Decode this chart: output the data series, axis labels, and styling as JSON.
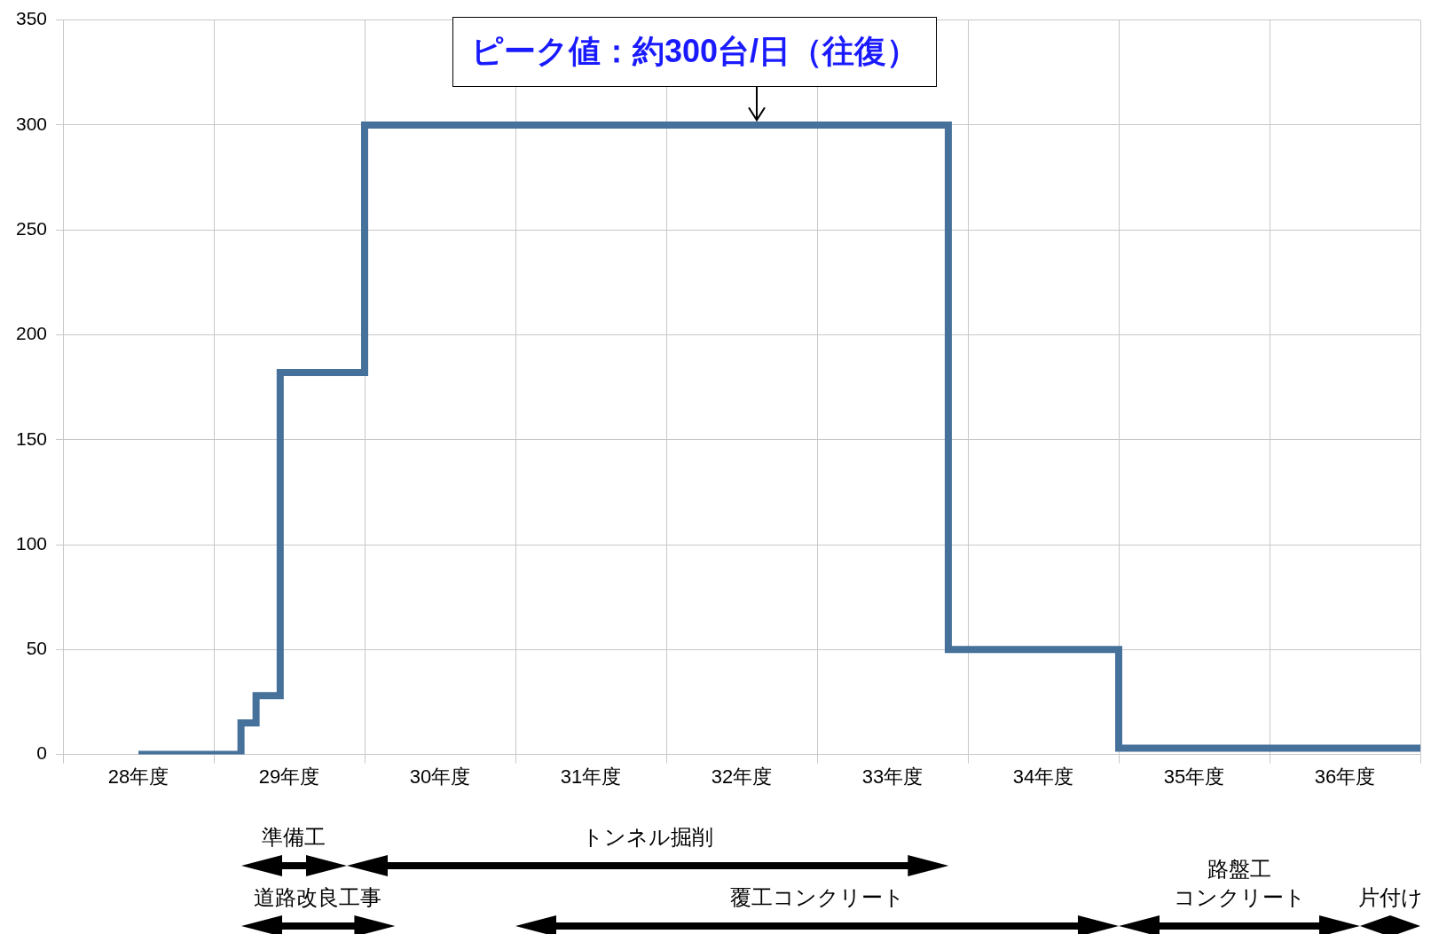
{
  "chart_data": {
    "type": "step",
    "x": [
      28.5,
      29.18,
      29.28,
      29.44,
      30,
      33.87,
      35,
      37
    ],
    "values": [
      0,
      15,
      28,
      182,
      300,
      50,
      3,
      3
    ],
    "color": "#46719b",
    "xlim": [
      28,
      37
    ],
    "xticks": [
      {
        "value": 28,
        "label": null
      },
      {
        "value": 28.5,
        "label": "28年度"
      },
      {
        "value": 29,
        "label": null
      },
      {
        "value": 29.5,
        "label": "29年度"
      },
      {
        "value": 30,
        "label": null
      },
      {
        "value": 30.5,
        "label": "30年度"
      },
      {
        "value": 31,
        "label": null
      },
      {
        "value": 31.5,
        "label": "31年度"
      },
      {
        "value": 32,
        "label": null
      },
      {
        "value": 32.5,
        "label": "32年度"
      },
      {
        "value": 33,
        "label": null
      },
      {
        "value": 33.5,
        "label": "33年度"
      },
      {
        "value": 34,
        "label": null
      },
      {
        "value": 34.5,
        "label": "34年度"
      },
      {
        "value": 35,
        "label": null
      },
      {
        "value": 35.5,
        "label": "35年度"
      },
      {
        "value": 36,
        "label": null
      },
      {
        "value": 36.5,
        "label": "36年度"
      },
      {
        "value": 37,
        "label": null
      }
    ],
    "ylim": [
      0,
      350
    ],
    "yticks": [
      0,
      50,
      100,
      150,
      200,
      250,
      300,
      350
    ],
    "grid": true,
    "annotations": [
      "ピーク値：約300台/日（往復）",
      "準備工",
      "トンネル掘削",
      "道路改良工事",
      "覆工コンクリート",
      "路盤工",
      "コンクリート",
      "片付け"
    ]
  }
}
